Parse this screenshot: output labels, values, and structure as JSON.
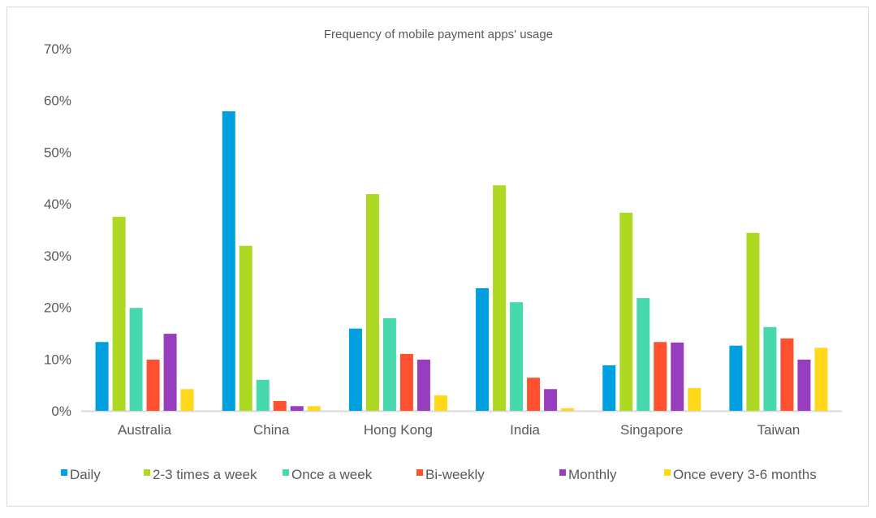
{
  "chart_data": {
    "type": "bar",
    "title": "Frequency of mobile payment apps' usage",
    "xlabel": "",
    "ylabel": "",
    "ylim": [
      0,
      70
    ],
    "yticks": [
      "0%",
      "10%",
      "20%",
      "30%",
      "40%",
      "50%",
      "60%",
      "70%"
    ],
    "grid": false,
    "legend_position": "bottom",
    "categories": [
      "Australia",
      "China",
      "Hong Kong",
      "India",
      "Singapore",
      "Taiwan"
    ],
    "series": [
      {
        "name": "Daily",
        "color": "#009fdf",
        "values": [
          13.3,
          57.9,
          15.9,
          23.7,
          8.8,
          12.6
        ]
      },
      {
        "name": "2-3 times a week",
        "color": "#add922",
        "values": [
          37.5,
          31.9,
          41.9,
          43.6,
          38.3,
          34.4
        ]
      },
      {
        "name": "Once a week",
        "color": "#48d8ae",
        "values": [
          19.9,
          6.0,
          17.9,
          21.0,
          21.8,
          16.2
        ]
      },
      {
        "name": "Bi-weekly",
        "color": "#ff502f",
        "values": [
          9.9,
          1.9,
          11.0,
          6.4,
          13.3,
          14.0
        ]
      },
      {
        "name": "Monthly",
        "color": "#973ebf",
        "values": [
          14.9,
          0.9,
          9.9,
          4.2,
          13.2,
          9.9
        ]
      },
      {
        "name": "Once every 3-6 months",
        "color": "#ffd81a",
        "values": [
          4.2,
          0.9,
          3.0,
          0.5,
          4.4,
          12.2
        ]
      }
    ]
  }
}
